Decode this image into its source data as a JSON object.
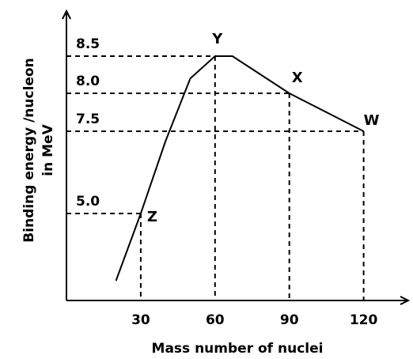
{
  "chart_data": {
    "type": "line",
    "xlabel": "Mass number of nuclei",
    "ylabel": "Binding energy /nucleon in MeV",
    "ylabel_lines": [
      "Binding energy /nucleon",
      "in MeV"
    ],
    "x_ticks": [
      "30",
      "60",
      "90",
      "120"
    ],
    "y_ticks": [
      "5.0",
      "7.5",
      "8.0",
      "8.5"
    ],
    "curve": [
      {
        "x": 20,
        "y": 1.5
      },
      {
        "x": 30,
        "y": 5.0
      },
      {
        "x": 40,
        "y": 7.2
      },
      {
        "x": 50,
        "y": 8.2
      },
      {
        "x": 60,
        "y": 8.5
      },
      {
        "x": 67,
        "y": 8.5
      },
      {
        "x": 90,
        "y": 8.0
      },
      {
        "x": 120,
        "y": 7.5
      }
    ],
    "points": [
      {
        "label": "Z",
        "x": 30,
        "y": 5.0
      },
      {
        "label": "Y",
        "x": 60,
        "y": 8.5
      },
      {
        "label": "X",
        "x": 90,
        "y": 8.0
      },
      {
        "label": "W",
        "x": 120,
        "y": 7.5
      }
    ],
    "grid": false
  }
}
